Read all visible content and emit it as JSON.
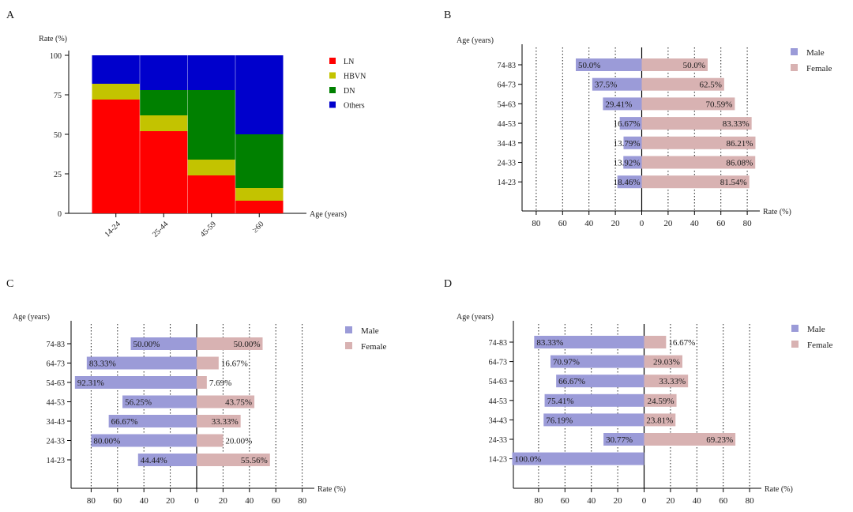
{
  "colors": {
    "LN": "#ff0000",
    "HBVN": "#c3c300",
    "DN": "#008000",
    "Others": "#0000cc",
    "male": "#9b9bd8",
    "female": "#d8b2b2",
    "axis": "#000000"
  },
  "chart_data": [
    {
      "panel": "A",
      "type": "bar",
      "stacked": true,
      "ylabel": "Rate (%)",
      "xlabel": "Age (years)",
      "categories": [
        "14-24",
        "25-44",
        "45-59",
        "≥60"
      ],
      "ylim": [
        0,
        100
      ],
      "yticks": [
        0,
        25,
        50,
        75,
        100
      ],
      "legend": "right",
      "series": [
        {
          "name": "LN",
          "values": [
            72,
            52,
            24,
            8
          ]
        },
        {
          "name": "HBVN",
          "values": [
            10,
            10,
            10,
            8
          ]
        },
        {
          "name": "DN",
          "values": [
            0,
            16,
            44,
            34
          ]
        },
        {
          "name": "Others",
          "values": [
            18,
            22,
            22,
            50
          ]
        }
      ]
    },
    {
      "panel": "B",
      "type": "bar",
      "orientation": "horizontal-butterfly",
      "ylabel": "Age (years)",
      "xlabel": "Rate (%)",
      "categories": [
        "74-83",
        "64-73",
        "54-63",
        "44-53",
        "34-43",
        "24-33",
        "14-23"
      ],
      "xticks": [
        80,
        60,
        40,
        20,
        0,
        20,
        40,
        60,
        80
      ],
      "legend": "top-right",
      "series": [
        {
          "name": "Male",
          "values": [
            50.0,
            37.5,
            29.41,
            16.67,
            13.79,
            13.92,
            18.46
          ],
          "labels": [
            "50.0%",
            "37.5%",
            "29.41%",
            "16.67%",
            "13.79%",
            "13.92%",
            "18.46%"
          ]
        },
        {
          "name": "Female",
          "values": [
            50.0,
            62.5,
            70.59,
            83.33,
            86.21,
            86.08,
            81.54
          ],
          "labels": [
            "50.0%",
            "62.5%",
            "70.59%",
            "83.33%",
            "86.21%",
            "86.08%",
            "81.54%"
          ]
        }
      ]
    },
    {
      "panel": "C",
      "type": "bar",
      "orientation": "horizontal-butterfly",
      "ylabel": "Age (years)",
      "xlabel": "Rate (%)",
      "categories": [
        "74-83",
        "64-73",
        "54-63",
        "44-53",
        "34-43",
        "24-33",
        "14-23"
      ],
      "xticks": [
        80,
        60,
        40,
        20,
        0,
        20,
        40,
        60,
        80
      ],
      "legend": "top-right",
      "series": [
        {
          "name": "Male",
          "values": [
            50.0,
            83.33,
            92.31,
            56.25,
            66.67,
            80.0,
            44.44
          ],
          "labels": [
            "50.00%",
            "83.33%",
            "92.31%",
            "56.25%",
            "66.67%",
            "80.00%",
            "44.44%"
          ]
        },
        {
          "name": "Female",
          "values": [
            50.0,
            16.67,
            7.69,
            43.75,
            33.33,
            20.0,
            55.56
          ],
          "labels": [
            "50.00%",
            "16.67%",
            "7.69%",
            "43.75%",
            "33.33%",
            "20.00%",
            "55.56%"
          ]
        }
      ]
    },
    {
      "panel": "D",
      "type": "bar",
      "orientation": "horizontal-butterfly",
      "ylabel": "Age (years)",
      "xlabel": "Rate (%)",
      "categories": [
        "74-83",
        "64-73",
        "54-63",
        "44-53",
        "34-43",
        "24-33",
        "14-23"
      ],
      "xticks": [
        80,
        60,
        40,
        20,
        0,
        20,
        40,
        60,
        80
      ],
      "legend": "top-right",
      "series": [
        {
          "name": "Male",
          "values": [
            83.33,
            70.97,
            66.67,
            75.41,
            76.19,
            30.77,
            100.0
          ],
          "labels": [
            "83.33%",
            "70.97%",
            "66.67%",
            "75.41%",
            "76.19%",
            "30.77%",
            "100.0%"
          ]
        },
        {
          "name": "Female",
          "values": [
            16.67,
            29.03,
            33.33,
            24.59,
            23.81,
            69.23,
            0
          ],
          "labels": [
            "16.67%",
            "29.03%",
            "33.33%",
            "24.59%",
            "23.81%",
            "69.23%",
            ""
          ]
        }
      ]
    }
  ]
}
